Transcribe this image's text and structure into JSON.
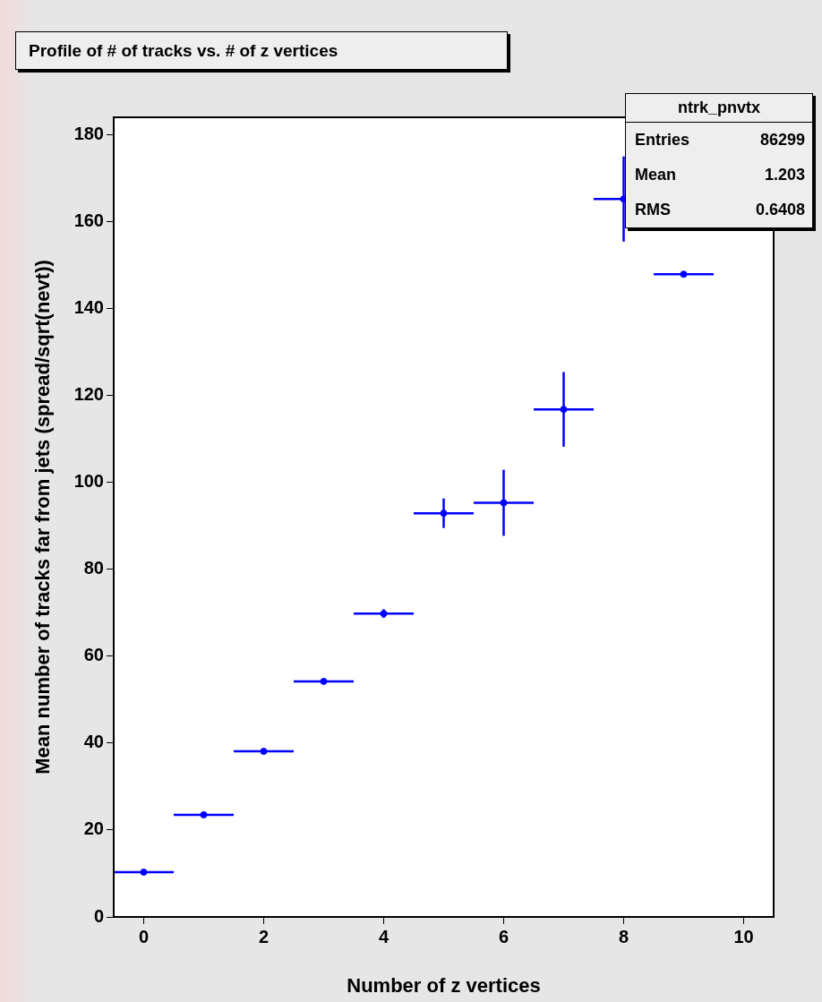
{
  "chart_data": {
    "type": "scatter",
    "title": "Profile of # of tracks vs. # of z vertices",
    "xlabel": "Number of z vertices",
    "ylabel": "Mean number of tracks far from jets (spread/sqrt(nevt))",
    "x": [
      0,
      1,
      2,
      3,
      4,
      5,
      6,
      7,
      8,
      9
    ],
    "series": [
      {
        "color": "#0000ff",
        "values": [
          10.3,
          23.5,
          38.1,
          54.2,
          69.8,
          92.9,
          95.3,
          116.8,
          165.2,
          147.9
        ],
        "errors": [
          0.3,
          0.2,
          0.3,
          0.4,
          1,
          3.4,
          7.6,
          8.6,
          9.8,
          0.4
        ],
        "xerrors": [
          0.5,
          0.5,
          0.5,
          0.5,
          0.5,
          0.5,
          0.5,
          0.5,
          0.5,
          0.5
        ]
      }
    ],
    "xlim": [
      -0.5,
      10.5
    ],
    "xticks": [
      0,
      2,
      4,
      6,
      8,
      10
    ],
    "ylim": [
      0,
      184
    ],
    "yticks": [
      0,
      20,
      40,
      60,
      80,
      100,
      120,
      140,
      160,
      180
    ],
    "grid": false,
    "legend": false,
    "marker": "circle",
    "annotations": [
      "ntrk_pnvtx",
      "Entries 86299",
      "Mean 1.203",
      "RMS 0.6408"
    ]
  }
}
